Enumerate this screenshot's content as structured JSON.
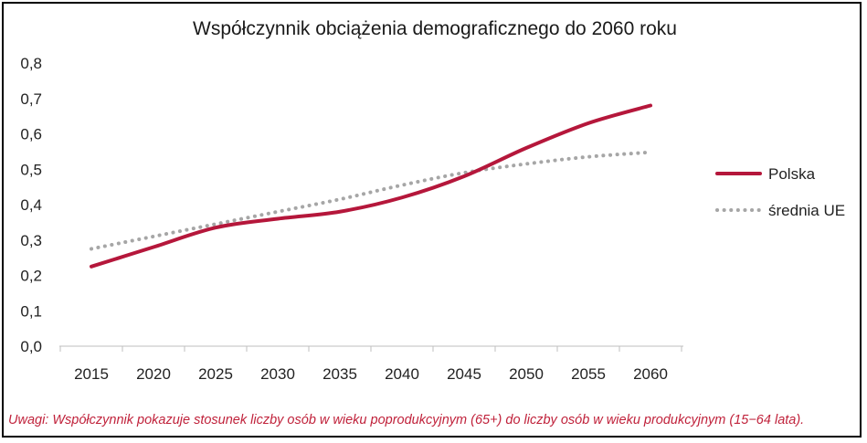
{
  "chart_data": {
    "type": "line",
    "title": "Współczynnik obciążenia demograficznego do 2060 roku",
    "xlabel": "",
    "ylabel": "",
    "x": [
      "2015",
      "2020",
      "2025",
      "2030",
      "2035",
      "2040",
      "2045",
      "2050",
      "2055",
      "2060"
    ],
    "y_ticks": [
      "0,0",
      "0,1",
      "0,2",
      "0,3",
      "0,4",
      "0,5",
      "0,6",
      "0,7",
      "0,8"
    ],
    "ylim": [
      0,
      0.8
    ],
    "grid": false,
    "legend_position": "right",
    "series": [
      {
        "name": "Polska",
        "color": "#b5173b",
        "style": "solid",
        "values": [
          0.225,
          0.28,
          0.335,
          0.36,
          0.38,
          0.42,
          0.48,
          0.56,
          0.63,
          0.68
        ]
      },
      {
        "name": "średnia UE",
        "color": "#a6a6a6",
        "style": "dotted",
        "values": [
          0.275,
          0.31,
          0.345,
          0.38,
          0.415,
          0.455,
          0.49,
          0.515,
          0.535,
          0.548
        ]
      }
    ]
  },
  "note": "Uwagi: Współczynnik pokazuje stosunek liczby osób w wieku poprodukcyjnym (65+) do liczby osób w wieku produkcyjnym (15−64 lata)."
}
